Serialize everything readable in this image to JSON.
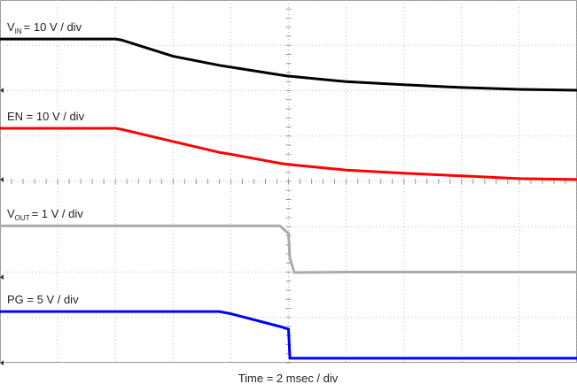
{
  "chart_data": {
    "type": "line",
    "x_label": "Time = 2 msec / div",
    "x": [
      0,
      2,
      4,
      4.2,
      6,
      7.6,
      8,
      9.7,
      10,
      10.05,
      10.2,
      12,
      14,
      16,
      18,
      20
    ],
    "xlim": [
      0,
      20
    ],
    "ylim": [
      0,
      8
    ],
    "xticks": [
      0,
      2,
      4,
      6,
      8,
      10,
      12,
      14,
      16,
      18,
      20
    ],
    "yticks": [
      0,
      1,
      2,
      3,
      4,
      5,
      6,
      7,
      8
    ],
    "grid": true,
    "series": [
      {
        "name": "V",
        "sub": "IN",
        "suffix": "= 10 V / div",
        "color": "#000000",
        "values": [
          7.14,
          7.14,
          7.14,
          7.12,
          6.76,
          6.56,
          6.52,
          6.35,
          6.32,
          6.32,
          6.31,
          6.2,
          6.13,
          6.07,
          6.03,
          6.01
        ]
      },
      {
        "name": "EN = 10 V / div",
        "color": "#ff0000",
        "values": [
          5.17,
          5.17,
          5.17,
          5.15,
          4.88,
          4.64,
          4.6,
          4.4,
          4.37,
          4.37,
          4.36,
          4.25,
          4.18,
          4.12,
          4.06,
          4.04
        ]
      },
      {
        "name": "V",
        "sub": "OUT",
        "suffix": "= 1 V / div",
        "color": "#aaaaaa",
        "values": [
          3.02,
          3.02,
          3.02,
          3.02,
          3.02,
          3.02,
          3.02,
          3.02,
          2.85,
          2.3,
          1.99,
          2.0,
          2.0,
          2.0,
          2.0,
          2.0
        ]
      },
      {
        "name": "PG = 5 V / div",
        "color": "#0000ff",
        "values": [
          1.13,
          1.13,
          1.13,
          1.13,
          1.13,
          1.13,
          1.08,
          0.8,
          0.74,
          0.1,
          0.1,
          0.1,
          0.1,
          0.1,
          0.1,
          0.1
        ]
      }
    ]
  }
}
